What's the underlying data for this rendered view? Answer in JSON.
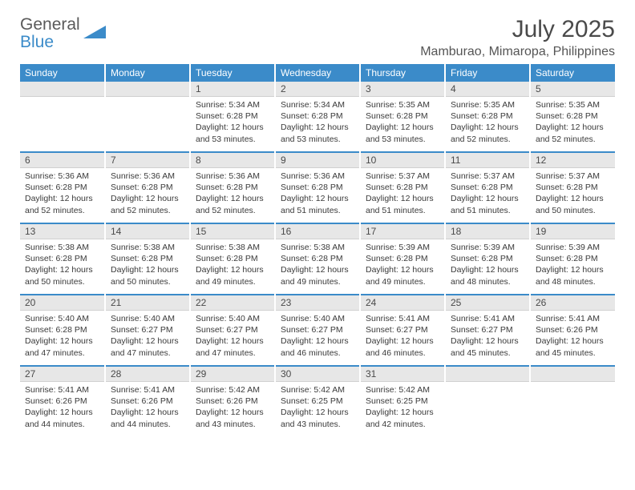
{
  "logo": {
    "part1": "General",
    "part2": "Blue"
  },
  "title": "July 2025",
  "location": "Mamburao, Mimaropa, Philippines",
  "colors": {
    "header_bg": "#3b8bc9",
    "header_text": "#ffffff",
    "daynum_bg": "#e7e7e7",
    "text": "#3a3a3a",
    "title_text": "#4a4a4a",
    "logo_gray": "#5a5a5a",
    "logo_blue": "#3b8bc9",
    "divider": "#3b8bc9"
  },
  "day_headers": [
    "Sunday",
    "Monday",
    "Tuesday",
    "Wednesday",
    "Thursday",
    "Friday",
    "Saturday"
  ],
  "weeks": [
    [
      null,
      null,
      {
        "n": "1",
        "sr": "5:34 AM",
        "ss": "6:28 PM",
        "dl": "12 hours and 53 minutes."
      },
      {
        "n": "2",
        "sr": "5:34 AM",
        "ss": "6:28 PM",
        "dl": "12 hours and 53 minutes."
      },
      {
        "n": "3",
        "sr": "5:35 AM",
        "ss": "6:28 PM",
        "dl": "12 hours and 53 minutes."
      },
      {
        "n": "4",
        "sr": "5:35 AM",
        "ss": "6:28 PM",
        "dl": "12 hours and 52 minutes."
      },
      {
        "n": "5",
        "sr": "5:35 AM",
        "ss": "6:28 PM",
        "dl": "12 hours and 52 minutes."
      }
    ],
    [
      {
        "n": "6",
        "sr": "5:36 AM",
        "ss": "6:28 PM",
        "dl": "12 hours and 52 minutes."
      },
      {
        "n": "7",
        "sr": "5:36 AM",
        "ss": "6:28 PM",
        "dl": "12 hours and 52 minutes."
      },
      {
        "n": "8",
        "sr": "5:36 AM",
        "ss": "6:28 PM",
        "dl": "12 hours and 52 minutes."
      },
      {
        "n": "9",
        "sr": "5:36 AM",
        "ss": "6:28 PM",
        "dl": "12 hours and 51 minutes."
      },
      {
        "n": "10",
        "sr": "5:37 AM",
        "ss": "6:28 PM",
        "dl": "12 hours and 51 minutes."
      },
      {
        "n": "11",
        "sr": "5:37 AM",
        "ss": "6:28 PM",
        "dl": "12 hours and 51 minutes."
      },
      {
        "n": "12",
        "sr": "5:37 AM",
        "ss": "6:28 PM",
        "dl": "12 hours and 50 minutes."
      }
    ],
    [
      {
        "n": "13",
        "sr": "5:38 AM",
        "ss": "6:28 PM",
        "dl": "12 hours and 50 minutes."
      },
      {
        "n": "14",
        "sr": "5:38 AM",
        "ss": "6:28 PM",
        "dl": "12 hours and 50 minutes."
      },
      {
        "n": "15",
        "sr": "5:38 AM",
        "ss": "6:28 PM",
        "dl": "12 hours and 49 minutes."
      },
      {
        "n": "16",
        "sr": "5:38 AM",
        "ss": "6:28 PM",
        "dl": "12 hours and 49 minutes."
      },
      {
        "n": "17",
        "sr": "5:39 AM",
        "ss": "6:28 PM",
        "dl": "12 hours and 49 minutes."
      },
      {
        "n": "18",
        "sr": "5:39 AM",
        "ss": "6:28 PM",
        "dl": "12 hours and 48 minutes."
      },
      {
        "n": "19",
        "sr": "5:39 AM",
        "ss": "6:28 PM",
        "dl": "12 hours and 48 minutes."
      }
    ],
    [
      {
        "n": "20",
        "sr": "5:40 AM",
        "ss": "6:28 PM",
        "dl": "12 hours and 47 minutes."
      },
      {
        "n": "21",
        "sr": "5:40 AM",
        "ss": "6:27 PM",
        "dl": "12 hours and 47 minutes."
      },
      {
        "n": "22",
        "sr": "5:40 AM",
        "ss": "6:27 PM",
        "dl": "12 hours and 47 minutes."
      },
      {
        "n": "23",
        "sr": "5:40 AM",
        "ss": "6:27 PM",
        "dl": "12 hours and 46 minutes."
      },
      {
        "n": "24",
        "sr": "5:41 AM",
        "ss": "6:27 PM",
        "dl": "12 hours and 46 minutes."
      },
      {
        "n": "25",
        "sr": "5:41 AM",
        "ss": "6:27 PM",
        "dl": "12 hours and 45 minutes."
      },
      {
        "n": "26",
        "sr": "5:41 AM",
        "ss": "6:26 PM",
        "dl": "12 hours and 45 minutes."
      }
    ],
    [
      {
        "n": "27",
        "sr": "5:41 AM",
        "ss": "6:26 PM",
        "dl": "12 hours and 44 minutes."
      },
      {
        "n": "28",
        "sr": "5:41 AM",
        "ss": "6:26 PM",
        "dl": "12 hours and 44 minutes."
      },
      {
        "n": "29",
        "sr": "5:42 AM",
        "ss": "6:26 PM",
        "dl": "12 hours and 43 minutes."
      },
      {
        "n": "30",
        "sr": "5:42 AM",
        "ss": "6:25 PM",
        "dl": "12 hours and 43 minutes."
      },
      {
        "n": "31",
        "sr": "5:42 AM",
        "ss": "6:25 PM",
        "dl": "12 hours and 42 minutes."
      },
      null,
      null
    ]
  ],
  "labels": {
    "sunrise": "Sunrise:",
    "sunset": "Sunset:",
    "daylight": "Daylight:"
  }
}
